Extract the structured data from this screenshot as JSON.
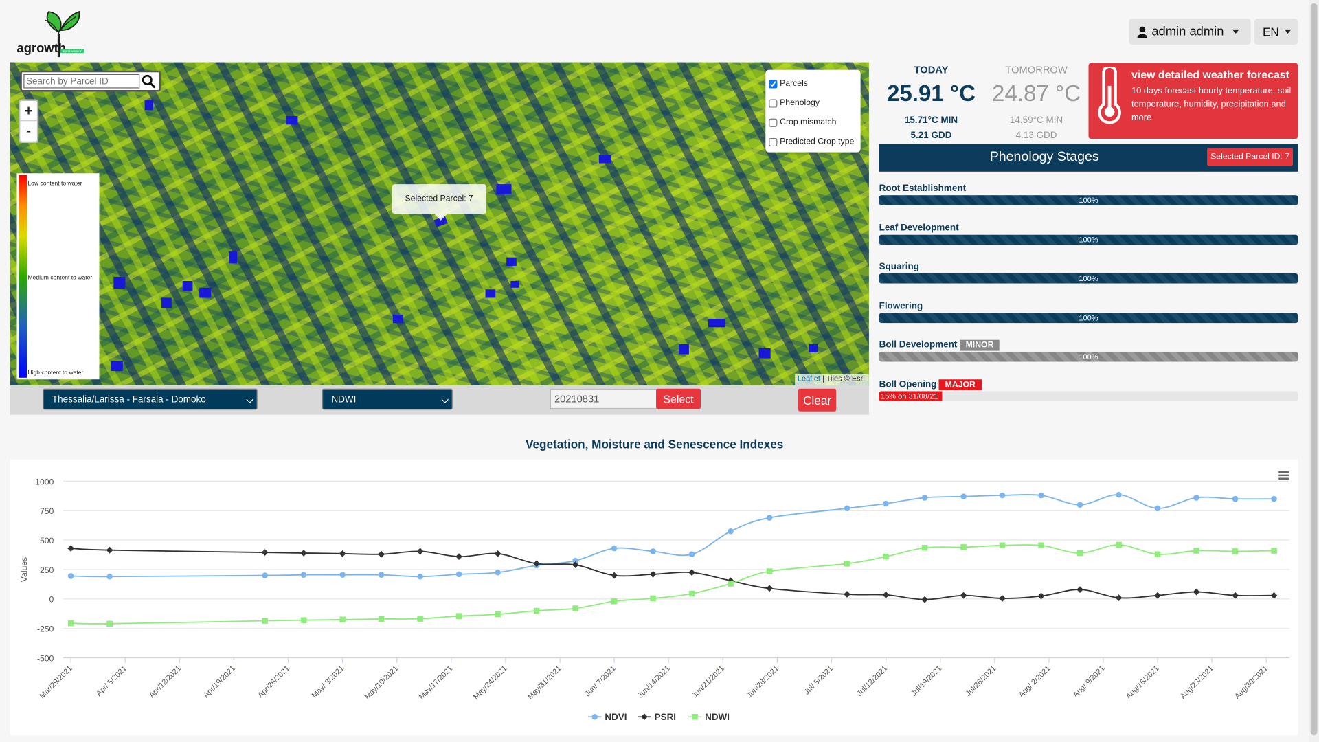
{
  "header": {
    "logo_text": "agrowth",
    "logo_badge": "alpha version",
    "user_label": "admin admin",
    "language": "EN"
  },
  "map": {
    "search_placeholder": "Search by Parcel ID",
    "zoom_in": "+",
    "zoom_out": "-",
    "legend": {
      "low": "Low content to water",
      "medium": "Medium content to water",
      "high": "High content to water"
    },
    "layers": [
      {
        "label": "Parcels",
        "checked": true
      },
      {
        "label": "Phenology",
        "checked": false
      },
      {
        "label": "Crop mismatch",
        "checked": false
      },
      {
        "label": "Predicted Crop type",
        "checked": false
      }
    ],
    "popup": "Selected Parcel: 7",
    "attribution_link": "Leaflet",
    "attribution_text": "| Tiles © Esri"
  },
  "toolbar": {
    "region": "Thessalia/Larissa - Farsala - Domoko",
    "index": "NDWI",
    "date": "20210831",
    "select_label": "Select",
    "clear_label": "Clear"
  },
  "weather": {
    "today_label": "TODAY",
    "today_temp": "25.91 °C",
    "today_min": "15.71°C MIN",
    "today_gdd": "5.21 GDD",
    "tomorrow_label": "TOMORROW",
    "tomorrow_temp": "24.87 °C",
    "tomorrow_min": "14.59°C MIN",
    "tomorrow_gdd": "4.13 GDD",
    "forecast_title": "view detailed weather forecast",
    "forecast_desc": "10 days forecast hourly temperature, soil temperature, humidity, precipitation and more"
  },
  "phenology": {
    "title": "Phenology Stages",
    "selected_badge": "Selected Parcel ID: 7",
    "stages": [
      {
        "label": "Root Establishment",
        "progress": 100,
        "text": "100%",
        "badge": ""
      },
      {
        "label": "Leaf Development",
        "progress": 100,
        "text": "100%",
        "badge": ""
      },
      {
        "label": "Squaring",
        "progress": 100,
        "text": "100%",
        "badge": ""
      },
      {
        "label": "Flowering",
        "progress": 100,
        "text": "100%",
        "badge": ""
      },
      {
        "label": "Boll Development",
        "progress": 100,
        "text": "100%",
        "badge": "MINOR"
      },
      {
        "label": "Boll Opening",
        "progress": 15,
        "text": "15% on 31/08/21",
        "badge": "MAJOR"
      }
    ],
    "colors": {
      "minor": "#888888",
      "major": "#e8181f",
      "bar": "#0d3b5c"
    }
  },
  "chart_data": {
    "type": "line",
    "title": "Vegetation, Moisture and Senescence Indexes",
    "ylabel": "Values",
    "ylim": [
      -500,
      1000
    ],
    "yticks": [
      1000,
      750,
      500,
      250,
      0,
      -250,
      -500
    ],
    "xlim": [
      "2021-03-28",
      "2021-09-02"
    ],
    "x_tick_labels": [
      "Mar/29/2021",
      "Apr/ 5/2021",
      "Apr/12/2021",
      "Apr/19/2021",
      "Apr/26/2021",
      "May/ 3/2021",
      "May/10/2021",
      "May/17/2021",
      "May/24/2021",
      "May/31/2021",
      "Jun/ 7/2021",
      "Jun/14/2021",
      "Jun/21/2021",
      "Jun/28/2021",
      "Jul/ 5/2021",
      "Jul/12/2021",
      "Jul/19/2021",
      "Jul/26/2021",
      "Aug/ 2/2021",
      "Aug/ 9/2021",
      "Aug/16/2021",
      "Aug/23/2021",
      "Aug/30/2021"
    ],
    "x": [
      "2021-03-29",
      "2021-04-03",
      "2021-04-23",
      "2021-04-28",
      "2021-05-03",
      "2021-05-08",
      "2021-05-13",
      "2021-05-18",
      "2021-05-23",
      "2021-05-28",
      "2021-06-02",
      "2021-06-07",
      "2021-06-12",
      "2021-06-17",
      "2021-06-22",
      "2021-06-27",
      "2021-07-07",
      "2021-07-12",
      "2021-07-17",
      "2021-07-22",
      "2021-07-27",
      "2021-08-01",
      "2021-08-06",
      "2021-08-11",
      "2021-08-16",
      "2021-08-21",
      "2021-08-26",
      "2021-08-31"
    ],
    "series": [
      {
        "name": "NDVI",
        "color": "#7cb5ec",
        "marker": "circle",
        "values": [
          195,
          190,
          200,
          205,
          205,
          205,
          190,
          210,
          225,
          285,
          325,
          430,
          405,
          380,
          575,
          690,
          770,
          810,
          860,
          870,
          880,
          880,
          800,
          885,
          770,
          860,
          850,
          850
        ]
      },
      {
        "name": "PSRI",
        "color": "#333333",
        "marker": "diamond",
        "values": [
          430,
          415,
          395,
          390,
          385,
          380,
          405,
          360,
          385,
          300,
          290,
          200,
          210,
          225,
          155,
          90,
          40,
          35,
          -5,
          30,
          5,
          25,
          80,
          10,
          30,
          60,
          30,
          30
        ]
      },
      {
        "name": "NDWI",
        "color": "#90ed7d",
        "marker": "square",
        "values": [
          -205,
          -210,
          -185,
          -180,
          -175,
          -170,
          -168,
          -145,
          -130,
          -100,
          -80,
          -20,
          5,
          45,
          130,
          235,
          300,
          360,
          435,
          440,
          455,
          455,
          390,
          460,
          380,
          410,
          405,
          410
        ]
      }
    ],
    "legend_position": "bottom",
    "grid": true
  }
}
